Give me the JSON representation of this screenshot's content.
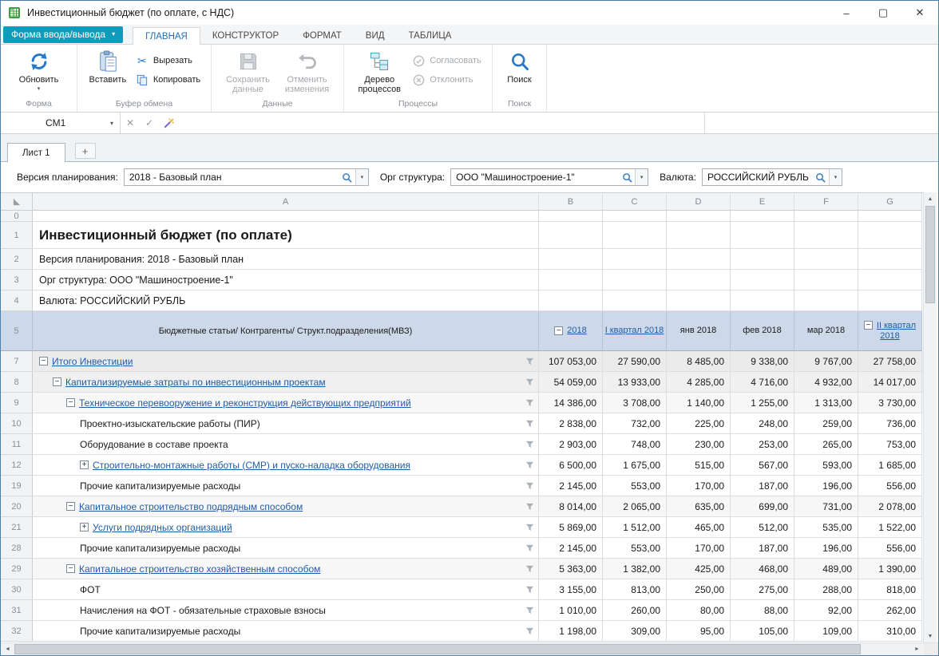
{
  "window": {
    "title": "Инвестиционный бюджет (по оплате, с НДС)"
  },
  "icons": {
    "minus": "−",
    "plus": "+",
    "caret_down": "▾",
    "minimize": "–",
    "maximize": "▢",
    "close": "✕",
    "cut": "✂",
    "formula_cancel": "✕",
    "formula_enter": "✓",
    "scroll_up": "▲",
    "scroll_down": "▼",
    "scroll_left": "◄",
    "scroll_right": "►"
  },
  "ribbon": {
    "form_menu": "Форма ввода/вывода",
    "tabs": [
      "ГЛАВНАЯ",
      "КОНСТРУКТОР",
      "ФОРМАТ",
      "ВИД",
      "ТАБЛИЦА"
    ],
    "groups": {
      "form": {
        "label": "Форма",
        "refresh": "Обновить"
      },
      "clipboard": {
        "label": "Буфер обмена",
        "paste": "Вставить",
        "cut": "Вырезать",
        "copy": "Копировать"
      },
      "data": {
        "label": "Данные",
        "save": "Сохранить данные",
        "undo": "Отменить изменения"
      },
      "process": {
        "label": "Процессы",
        "tree": "Дерево процессов",
        "approve": "Согласовать",
        "reject": "Отклонить"
      },
      "search": {
        "label": "Поиск",
        "search": "Поиск"
      }
    }
  },
  "formula_bar": {
    "cell_ref": "CM1",
    "value": ""
  },
  "sheet_tabs": {
    "tabs": [
      "Лист 1"
    ],
    "add": "+"
  },
  "filters": [
    {
      "label": "Версия планирования:",
      "value": "2018 - Базовый план"
    },
    {
      "label": "Орг структура:",
      "value": "ООО \"Машиностроение-1\""
    },
    {
      "label": "Валюта:",
      "value": "РОССИЙСКИЙ РУБЛЬ"
    }
  ],
  "grid": {
    "columns": [
      "A",
      "B",
      "C",
      "D",
      "E",
      "F",
      "G"
    ],
    "spacer_row_num": "0",
    "info_rows": [
      {
        "num": "1",
        "text": "Инвестиционный бюджет (по оплате)"
      },
      {
        "num": "2",
        "text": "Версия планирования: 2018 - Базовый план"
      },
      {
        "num": "3",
        "text": "Орг структура: ООО \"Машиностроение-1\""
      },
      {
        "num": "4",
        "text": "Валюта: РОССИЙСКИЙ РУБЛЬ"
      }
    ],
    "header_row": {
      "num": "5",
      "label": "Бюджетные статьи/ Контрагенты/ Структ.подразделения(МВЗ)",
      "columns": [
        {
          "text": "2018",
          "link": true,
          "expander": "minus"
        },
        {
          "text": "I квартал 2018",
          "link": true,
          "expander": null
        },
        {
          "text": "янв 2018",
          "link": false,
          "expander": null
        },
        {
          "text": "фев 2018",
          "link": false,
          "expander": null
        },
        {
          "text": "мар 2018",
          "link": false,
          "expander": null
        },
        {
          "text": "II квартал 2018",
          "link": true,
          "expander": "minus"
        }
      ]
    },
    "data_rows": [
      {
        "num": "7",
        "label": "Итого Инвестиции",
        "level": 0,
        "expander": "minus",
        "link": true,
        "bg": "#ebebeb",
        "values": [
          "107 053,00",
          "27 590,00",
          "8 485,00",
          "9 338,00",
          "9 767,00",
          "27 758,00"
        ]
      },
      {
        "num": "8",
        "label": "Капитализируемые затраты по инвестиционным проектам",
        "level": 1,
        "expander": "minus",
        "link": true,
        "bg": "#f0f0f0",
        "values": [
          "54 059,00",
          "13 933,00",
          "4 285,00",
          "4 716,00",
          "4 932,00",
          "14 017,00"
        ]
      },
      {
        "num": "9",
        "label": "Техническое перевооружение и реконструкция действующих предприятий",
        "level": 2,
        "expander": "minus",
        "link": true,
        "bg": "#f7f7f7",
        "values": [
          "14 386,00",
          "3 708,00",
          "1 140,00",
          "1 255,00",
          "1 313,00",
          "3 730,00"
        ]
      },
      {
        "num": "10",
        "label": "Проектно-изыскательские работы (ПИР)",
        "level": 3,
        "expander": null,
        "link": false,
        "bg": "#ffffff",
        "values": [
          "2 838,00",
          "732,00",
          "225,00",
          "248,00",
          "259,00",
          "736,00"
        ]
      },
      {
        "num": "11",
        "label": "Оборудование в составе проекта",
        "level": 3,
        "expander": null,
        "link": false,
        "bg": "#ffffff",
        "values": [
          "2 903,00",
          "748,00",
          "230,00",
          "253,00",
          "265,00",
          "753,00"
        ]
      },
      {
        "num": "12",
        "label": "Строительно-монтажные работы (СМР) и пуско-наладка оборудования",
        "level": 3,
        "expander": "plus",
        "link": true,
        "bg": "#ffffff",
        "values": [
          "6 500,00",
          "1 675,00",
          "515,00",
          "567,00",
          "593,00",
          "1 685,00"
        ]
      },
      {
        "num": "19",
        "label": "Прочие капитализируемые расходы",
        "level": 3,
        "expander": null,
        "link": false,
        "bg": "#ffffff",
        "values": [
          "2 145,00",
          "553,00",
          "170,00",
          "187,00",
          "196,00",
          "556,00"
        ]
      },
      {
        "num": "20",
        "label": "Капитальное строительство подрядным способом",
        "level": 2,
        "expander": "minus",
        "link": true,
        "bg": "#f7f7f7",
        "values": [
          "8 014,00",
          "2 065,00",
          "635,00",
          "699,00",
          "731,00",
          "2 078,00"
        ]
      },
      {
        "num": "21",
        "label": "Услуги подрядных организаций",
        "level": 3,
        "expander": "plus",
        "link": true,
        "bg": "#ffffff",
        "values": [
          "5 869,00",
          "1 512,00",
          "465,00",
          "512,00",
          "535,00",
          "1 522,00"
        ]
      },
      {
        "num": "28",
        "label": "Прочие капитализируемые расходы",
        "level": 3,
        "expander": null,
        "link": false,
        "bg": "#ffffff",
        "values": [
          "2 145,00",
          "553,00",
          "170,00",
          "187,00",
          "196,00",
          "556,00"
        ]
      },
      {
        "num": "29",
        "label": "Капитальное строительство хозяйственным способом",
        "level": 2,
        "expander": "minus",
        "link": true,
        "bg": "#f7f7f7",
        "values": [
          "5 363,00",
          "1 382,00",
          "425,00",
          "468,00",
          "489,00",
          "1 390,00"
        ]
      },
      {
        "num": "30",
        "label": "ФОТ",
        "level": 3,
        "expander": null,
        "link": false,
        "bg": "#ffffff",
        "values": [
          "3 155,00",
          "813,00",
          "250,00",
          "275,00",
          "288,00",
          "818,00"
        ]
      },
      {
        "num": "31",
        "label": "Начисления на ФОТ - обязательные страховые взносы",
        "level": 3,
        "expander": null,
        "link": false,
        "bg": "#ffffff",
        "values": [
          "1 010,00",
          "260,00",
          "80,00",
          "88,00",
          "92,00",
          "262,00"
        ]
      },
      {
        "num": "32",
        "label": "Прочие капитализируемые расходы",
        "level": 3,
        "expander": null,
        "link": false,
        "bg": "#ffffff",
        "values": [
          "1 198,00",
          "309,00",
          "95,00",
          "105,00",
          "109,00",
          "310,00"
        ]
      }
    ]
  }
}
